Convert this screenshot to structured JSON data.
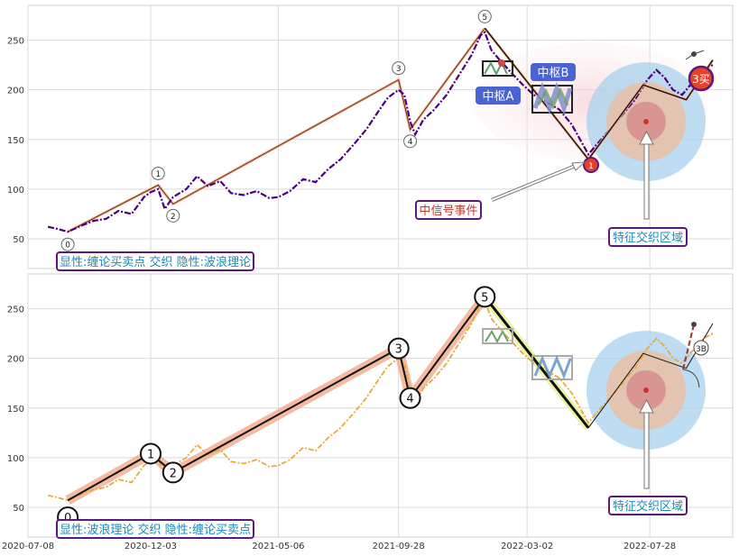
{
  "chart_data": [
    {
      "type": "line",
      "panel": "top",
      "ylim": [
        20,
        285
      ],
      "yticks": [
        50,
        100,
        150,
        200,
        250
      ],
      "xlim": [
        "2020-07-08",
        "2022-11-05"
      ],
      "xticks": [
        "2020-07-08",
        "2020-12-03",
        "2021-05-06",
        "2021-09-28",
        "2022-03-02",
        "2022-07-28"
      ],
      "grid": true,
      "price_color": "#4b0082",
      "price_series": [
        [
          "2020-08-01",
          62
        ],
        [
          "2020-08-12",
          60
        ],
        [
          "2020-08-25",
          57
        ],
        [
          "2020-09-10",
          63
        ],
        [
          "2020-09-25",
          68
        ],
        [
          "2020-10-10",
          70
        ],
        [
          "2020-10-25",
          78
        ],
        [
          "2020-11-10",
          75
        ],
        [
          "2020-11-25",
          92
        ],
        [
          "2020-12-03",
          97
        ],
        [
          "2020-12-12",
          100
        ],
        [
          "2020-12-20",
          80
        ],
        [
          "2020-12-30",
          92
        ],
        [
          "2021-01-15",
          100
        ],
        [
          "2021-01-28",
          113
        ],
        [
          "2021-02-10",
          103
        ],
        [
          "2021-02-25",
          108
        ],
        [
          "2021-03-10",
          96
        ],
        [
          "2021-03-25",
          94
        ],
        [
          "2021-04-10",
          98
        ],
        [
          "2021-04-25",
          91
        ],
        [
          "2021-05-06",
          92
        ],
        [
          "2021-05-20",
          98
        ],
        [
          "2021-06-05",
          110
        ],
        [
          "2021-06-20",
          107
        ],
        [
          "2021-07-05",
          120
        ],
        [
          "2021-07-20",
          130
        ],
        [
          "2021-08-05",
          145
        ],
        [
          "2021-08-20",
          160
        ],
        [
          "2021-09-05",
          180
        ],
        [
          "2021-09-15",
          192
        ],
        [
          "2021-09-28",
          200
        ],
        [
          "2021-10-05",
          195
        ],
        [
          "2021-10-12",
          168
        ],
        [
          "2021-10-18",
          155
        ],
        [
          "2021-10-28",
          170
        ],
        [
          "2021-11-10",
          180
        ],
        [
          "2021-11-25",
          195
        ],
        [
          "2021-12-10",
          215
        ],
        [
          "2021-12-25",
          235
        ],
        [
          "2022-01-05",
          255
        ],
        [
          "2022-01-10",
          258
        ],
        [
          "2022-01-18",
          240
        ],
        [
          "2022-01-28",
          230
        ],
        [
          "2022-02-10",
          218
        ],
        [
          "2022-02-25",
          205
        ],
        [
          "2022-03-10",
          195
        ],
        [
          "2022-03-25",
          188
        ],
        [
          "2022-04-10",
          180
        ],
        [
          "2022-04-25",
          165
        ],
        [
          "2022-05-05",
          150
        ],
        [
          "2022-05-15",
          135
        ],
        [
          "2022-05-25",
          145
        ],
        [
          "2022-06-10",
          160
        ],
        [
          "2022-06-25",
          175
        ],
        [
          "2022-07-10",
          190
        ],
        [
          "2022-07-25",
          210
        ],
        [
          "2022-08-05",
          220
        ],
        [
          "2022-08-15",
          212
        ],
        [
          "2022-08-25",
          200
        ],
        [
          "2022-09-05",
          195
        ],
        [
          "2022-09-15",
          205
        ],
        [
          "2022-09-25",
          215
        ],
        [
          "2022-10-05",
          222
        ],
        [
          "2022-10-12",
          225
        ]
      ],
      "wave_points": [
        {
          "label": "0",
          "date": "2020-08-25",
          "value": 57
        },
        {
          "label": "1",
          "date": "2020-12-12",
          "value": 104
        },
        {
          "label": "2",
          "date": "2020-12-30",
          "value": 85
        },
        {
          "label": "3",
          "date": "2021-09-28",
          "value": 210
        },
        {
          "label": "4",
          "date": "2021-10-12",
          "value": 160
        },
        {
          "label": "5",
          "date": "2022-01-10",
          "value": 262
        }
      ],
      "down_leg": [
        [
          "2022-01-10",
          262
        ],
        [
          "2022-05-15",
          130
        ],
        [
          "2022-07-20",
          205
        ],
        [
          "2022-09-10",
          190
        ],
        [
          "2022-10-12",
          230
        ]
      ],
      "buy_point": {
        "label": "1",
        "date": "2022-05-15",
        "value": 127
      },
      "buy_text": "3买",
      "annotations": {
        "zone_label": "特征交织区域",
        "signal_label": "中信号事件",
        "pivot_a": "中枢A",
        "pivot_b": "中枢B",
        "legend_text": "显性:缠论买卖点 交织 隐性:波浪理论"
      }
    },
    {
      "type": "line",
      "panel": "bottom",
      "ylim": [
        20,
        285
      ],
      "yticks": [
        50,
        100,
        150,
        200,
        250
      ],
      "xlim": [
        "2020-07-08",
        "2022-11-05"
      ],
      "xticks": [
        "2020-07-08",
        "2020-12-03",
        "2021-05-06",
        "2021-09-28",
        "2022-03-02",
        "2022-07-28"
      ],
      "grid": true,
      "price_color": "#e8a93a",
      "wave_points": [
        {
          "label": "0",
          "date": "2020-08-25",
          "value": 40
        },
        {
          "label": "1",
          "date": "2020-12-03",
          "value": 104
        },
        {
          "label": "2",
          "date": "2020-12-30",
          "value": 85
        },
        {
          "label": "3",
          "date": "2021-09-28",
          "value": 210
        },
        {
          "label": "4",
          "date": "2021-10-12",
          "value": 160
        },
        {
          "label": "5",
          "date": "2022-01-10",
          "value": 262
        }
      ],
      "extension": [
        [
          "2022-01-10",
          262
        ],
        [
          "2022-05-15",
          130
        ],
        [
          "2022-07-20",
          205
        ],
        [
          "2022-09-10",
          190
        ],
        [
          "2022-10-12",
          235
        ]
      ],
      "b_point_label": "3B",
      "annotations": {
        "zone_label": "特征交织区域",
        "legend_text": "显性:波浪理论 交织 隐性:缠论买卖点"
      }
    }
  ]
}
